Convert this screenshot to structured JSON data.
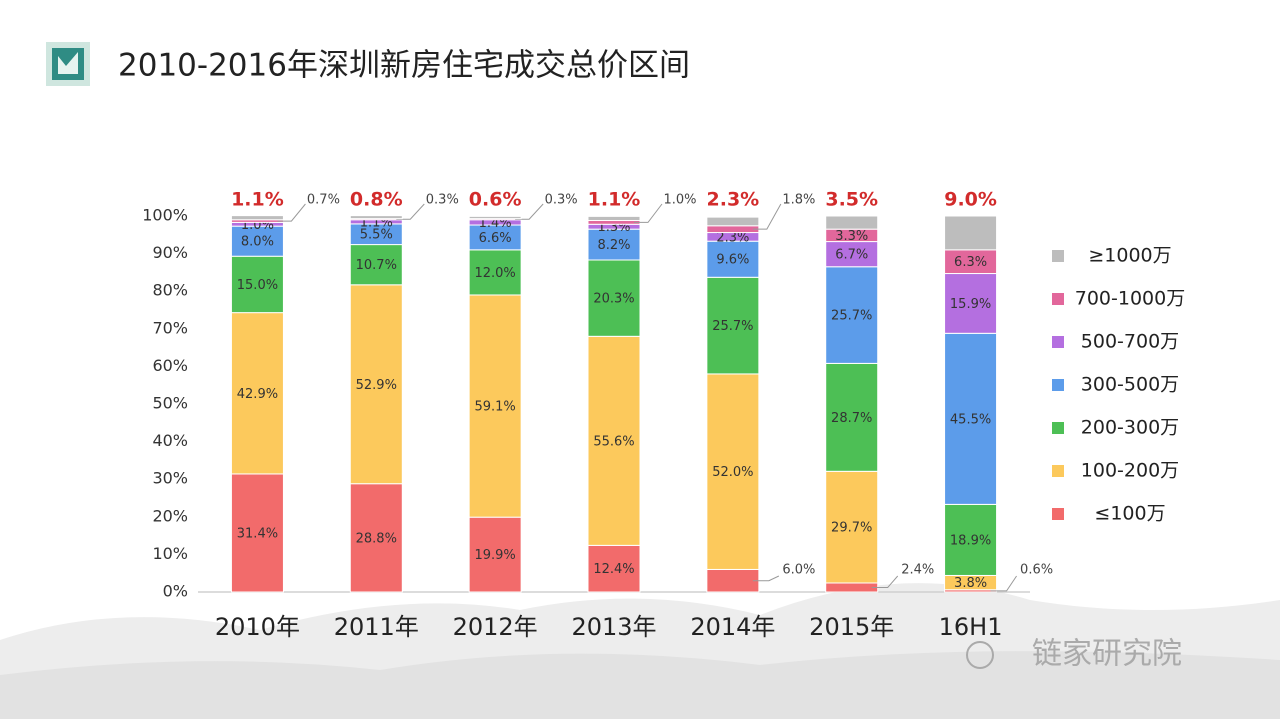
{
  "chart_data": {
    "type": "stacked-bar",
    "title": "2010-2016年深圳新房住宅成交总价区间",
    "categories": [
      "2010年",
      "2011年",
      "2012年",
      "2013年",
      "2014年",
      "2015年",
      "16H1"
    ],
    "series": [
      {
        "name": "≤100万",
        "color": "#f26b6b",
        "values": [
          31.4,
          28.8,
          19.9,
          12.4,
          6.0,
          2.4,
          0.6
        ],
        "value_labels": [
          "31.4%",
          "28.8%",
          "19.9%",
          "12.4%",
          "6.0%",
          "2.4%",
          "0.6%"
        ]
      },
      {
        "name": "100-200万",
        "color": "#fcc95c",
        "values": [
          42.9,
          52.9,
          59.1,
          55.6,
          52.0,
          29.7,
          3.8
        ],
        "value_labels": [
          "42.9%",
          "52.9%",
          "59.1%",
          "55.6%",
          "52.0%",
          "29.7%",
          "3.8%"
        ]
      },
      {
        "name": "200-300万",
        "color": "#4dbf55",
        "values": [
          15.0,
          10.7,
          12.0,
          20.3,
          25.7,
          28.7,
          18.9
        ],
        "value_labels": [
          "15.0%",
          "10.7%",
          "12.0%",
          "20.3%",
          "25.7%",
          "28.7%",
          "18.9%"
        ]
      },
      {
        "name": "300-500万",
        "color": "#5c9cea",
        "values": [
          8.0,
          5.5,
          6.6,
          8.2,
          9.6,
          25.7,
          45.5
        ],
        "value_labels": [
          "8.0%",
          "5.5%",
          "6.6%",
          "8.2%",
          "9.6%",
          "25.7%",
          "45.5%"
        ]
      },
      {
        "name": "500-700万",
        "color": "#b46fe0",
        "values": [
          1.0,
          1.1,
          1.4,
          1.3,
          2.3,
          6.7,
          15.9
        ],
        "value_labels": [
          "1.0%",
          "1.1%",
          "1.4%",
          "1.3%",
          "2.3%",
          "6.7%",
          "15.9%"
        ]
      },
      {
        "name": "700-1000万",
        "color": "#e2679b",
        "values": [
          0.7,
          0.3,
          0.3,
          1.0,
          1.8,
          3.3,
          6.3
        ],
        "value_labels": [
          "0.7%",
          "0.3%",
          "0.3%",
          "1.0%",
          "1.8%",
          "3.3%",
          "6.3%"
        ]
      },
      {
        "name": "≥1000万",
        "color": "#bdbdbd",
        "values": [
          1.1,
          0.8,
          0.6,
          1.1,
          2.3,
          3.5,
          9.0
        ],
        "value_labels": [
          "1.1%",
          "0.8%",
          "0.6%",
          "1.1%",
          "2.3%",
          "3.5%",
          "9.0%"
        ]
      }
    ],
    "ylim": [
      0,
      100
    ],
    "yticks": [
      {
        "value": 0,
        "label": "0%"
      },
      {
        "value": 10,
        "label": "10%"
      },
      {
        "value": 20,
        "label": "20%"
      },
      {
        "value": 30,
        "label": "30%"
      },
      {
        "value": 40,
        "label": "40%"
      },
      {
        "value": 50,
        "label": "50%"
      },
      {
        "value": 60,
        "label": "60%"
      },
      {
        "value": 70,
        "label": "70%"
      },
      {
        "value": 80,
        "label": "80%"
      },
      {
        "value": 90,
        "label": "90%"
      },
      {
        "value": 100,
        "label": "100%"
      }
    ],
    "grid": false,
    "legend": "right"
  },
  "watermark": "链家研究院"
}
